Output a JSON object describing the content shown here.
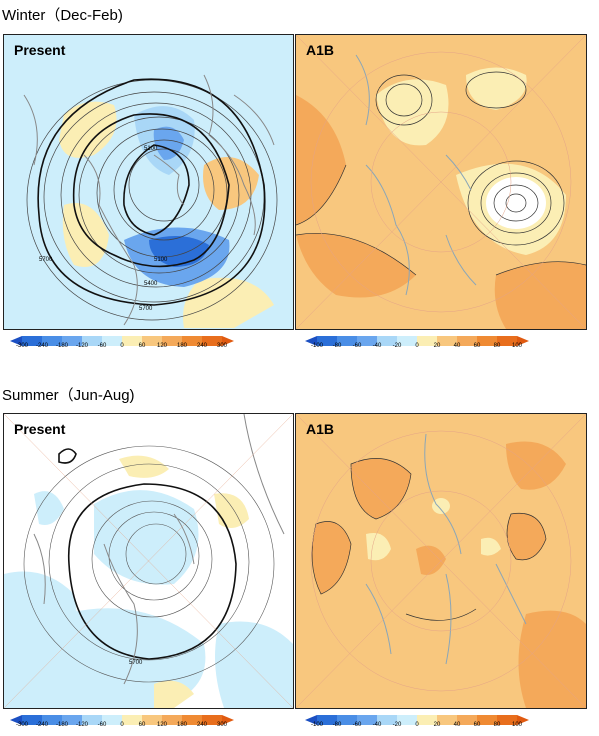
{
  "sections": [
    {
      "title": "Winter（Dec-Feb)",
      "panels": [
        {
          "label": "Present",
          "contour_labels": [
            "5100",
            "5100",
            "5400",
            "5700",
            "5700"
          ]
        },
        {
          "label": "A1B"
        }
      ],
      "colorbars": [
        {
          "ticks": [
            "-300",
            "-240",
            "-180",
            "-120",
            "-60",
            "0",
            "60",
            "120",
            "180",
            "240",
            "300"
          ]
        },
        {
          "ticks": [
            "-100",
            "-80",
            "-60",
            "-40",
            "-20",
            "0",
            "20",
            "40",
            "60",
            "80",
            "100"
          ]
        }
      ]
    },
    {
      "title": "Summer（Jun-Aug)",
      "panels": [
        {
          "label": "Present",
          "contour_labels": [
            "5700"
          ]
        },
        {
          "label": "A1B"
        }
      ],
      "colorbars": [
        {
          "ticks": [
            "-300",
            "-240",
            "-180",
            "-120",
            "-60",
            "0",
            "60",
            "120",
            "180",
            "240",
            "300"
          ]
        },
        {
          "ticks": [
            "-100",
            "-80",
            "-60",
            "-40",
            "-20",
            "0",
            "20",
            "40",
            "60",
            "80",
            "100"
          ]
        }
      ]
    }
  ],
  "colors": {
    "blue_dark": "#2b6fd8",
    "blue_mid": "#6aa6ee",
    "blue_light": "#a9d7f7",
    "cyan_pale": "#cdeefb",
    "white": "#ffffff",
    "yellow_pale": "#fbeeb4",
    "orange_light": "#f8c77e",
    "orange_mid": "#f4a95a",
    "orange_dark": "#ef8a33",
    "land_outline": "#888888",
    "contour": "#222222"
  }
}
